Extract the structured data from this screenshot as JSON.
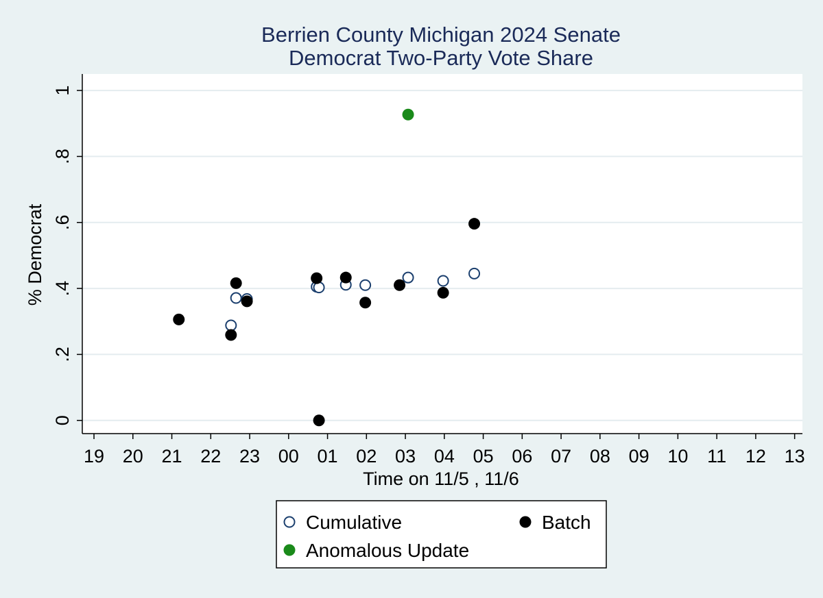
{
  "chart_data": {
    "type": "scatter",
    "title": [
      "Berrien County Michigan 2024 Senate",
      "Democrat Two-Party Vote Share"
    ],
    "xlabel": "Time on 11/5 , 11/6",
    "ylabel": "% Democrat",
    "x_ticks": [
      "19",
      "20",
      "21",
      "22",
      "23",
      "00",
      "01",
      "02",
      "03",
      "04",
      "05",
      "06",
      "07",
      "08",
      "09",
      "10",
      "11",
      "12",
      "13"
    ],
    "y_ticks": [
      "0",
      ".2",
      ".4",
      ".6",
      ".8",
      "1"
    ],
    "xlim_hours": [
      18.7,
      37.2
    ],
    "ylim": [
      -0.04,
      1.05
    ],
    "grid": true,
    "legend_position": "bottom",
    "series": [
      {
        "name": "Cumulative",
        "marker": "hollow-circle",
        "color": "#1b3f6e",
        "points": [
          {
            "x": 22.52,
            "y": 0.288
          },
          {
            "x": 22.65,
            "y": 0.371
          },
          {
            "x": 22.93,
            "y": 0.368
          },
          {
            "x": 24.72,
            "y": 0.405
          },
          {
            "x": 24.78,
            "y": 0.403
          },
          {
            "x": 25.47,
            "y": 0.411
          },
          {
            "x": 25.97,
            "y": 0.41
          },
          {
            "x": 27.07,
            "y": 0.433
          },
          {
            "x": 27.97,
            "y": 0.423
          },
          {
            "x": 28.77,
            "y": 0.445
          }
        ]
      },
      {
        "name": "Batch",
        "marker": "filled-circle",
        "color": "#000000",
        "points": [
          {
            "x": 21.18,
            "y": 0.306
          },
          {
            "x": 22.52,
            "y": 0.259
          },
          {
            "x": 22.65,
            "y": 0.416
          },
          {
            "x": 22.93,
            "y": 0.361
          },
          {
            "x": 24.72,
            "y": 0.431
          },
          {
            "x": 24.78,
            "y": 0.0
          },
          {
            "x": 25.47,
            "y": 0.433
          },
          {
            "x": 25.97,
            "y": 0.357
          },
          {
            "x": 26.85,
            "y": 0.41
          },
          {
            "x": 27.97,
            "y": 0.387
          },
          {
            "x": 28.77,
            "y": 0.596
          }
        ]
      },
      {
        "name": "Anomalous Update",
        "marker": "filled-circle",
        "color": "#1a8a1a",
        "points": [
          {
            "x": 27.07,
            "y": 0.927
          }
        ]
      }
    ]
  },
  "colors": {
    "background": "#eaf2f3",
    "plot_background": "#ffffff",
    "grid": "#e4ecef",
    "title": "#1a2a58"
  }
}
